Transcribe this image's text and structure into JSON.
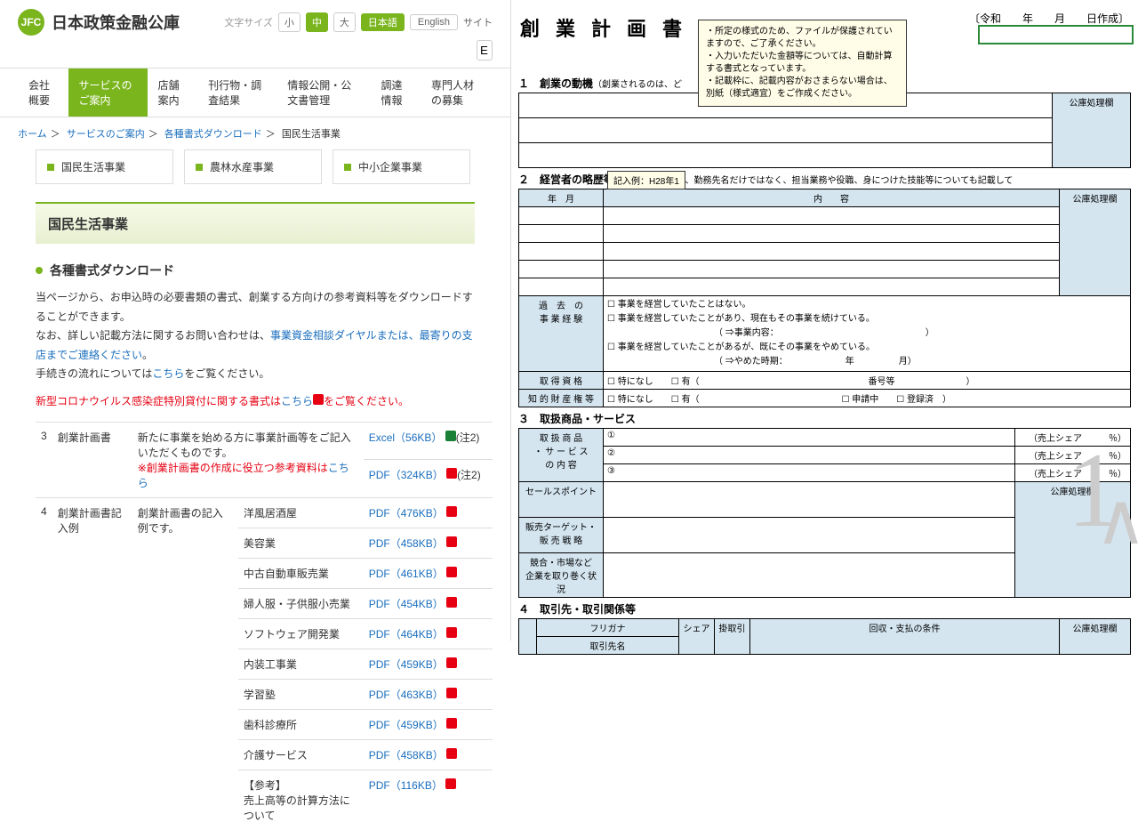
{
  "site": {
    "logo": "JFC",
    "name": "日本政策金融公庫",
    "sizeLabel": "文字サイズ",
    "sizes": [
      "小",
      "中",
      "大"
    ],
    "langs": [
      "日本語",
      "English"
    ],
    "siteLink": "サイト",
    "searchPlaceholder": "E"
  },
  "nav": [
    "会社概要",
    "サービスのご案内",
    "店舗案内",
    "刊行物・調査結果",
    "情報公開・公文書管理",
    "調達情報",
    "専門人材の募集"
  ],
  "breadcrumb": {
    "items": [
      "ホーム",
      "サービスのご案内",
      "各種書式ダウンロード"
    ],
    "current": "国民生活事業"
  },
  "cats": [
    "国民生活事業",
    "農林水産事業",
    "中小企業事業"
  ],
  "pageTitle": "国民生活事業",
  "sectionTitle": "各種書式ダウンロード",
  "intro1": "当ページから、お申込時の必要書類の書式、創業する方向けの参考資料等をダウンロードすることができます。",
  "intro2a": "なお、詳しい記載方法に関するお問い合わせは、",
  "intro2b": "事業資金相談ダイヤルまたは、最寄りの支店までご連絡ください",
  "intro2c": "。",
  "intro3a": "手続きの流れについては",
  "intro3b": "こちら",
  "intro3c": "をご覧ください。",
  "covid1": "新型コロナウイルス感染症特別貸付に関する書式は",
  "covid2": "こちら",
  "covid3": "をご覧ください。",
  "rows": {
    "r3": {
      "no": "3",
      "name": "創業計画書",
      "desc1": "新たに事業を始める方に事業計画等をご記入いただくものです。",
      "desc2": "※創業計画書の作成に役立つ参考資料は",
      "desc3": "こちら",
      "fmt1": "Excel（56KB）",
      "note1": "(注2)",
      "fmt2": "PDF（324KB）",
      "note2": "(注2)"
    },
    "r4": {
      "no": "4",
      "name": "創業計画書記入例",
      "desc": "創業計画書の記入例です。",
      "ex": [
        {
          "t": "洋風居酒屋",
          "f": "PDF（476KB）"
        },
        {
          "t": "美容業",
          "f": "PDF（458KB）"
        },
        {
          "t": "中古自動車販売業",
          "f": "PDF（461KB）"
        },
        {
          "t": "婦人服・子供服小売業",
          "f": "PDF（454KB）"
        },
        {
          "t": "ソフトウェア開発業",
          "f": "PDF（464KB）"
        },
        {
          "t": "内装工事業",
          "f": "PDF（459KB）"
        },
        {
          "t": "学習塾",
          "f": "PDF（463KB）"
        },
        {
          "t": "歯科診療所",
          "f": "PDF（459KB）"
        },
        {
          "t": "介護サービス",
          "f": "PDF（458KB）"
        },
        {
          "t": "【参考】\n売上高等の計算方法について",
          "f": "PDF（116KB）"
        }
      ]
    }
  },
  "form": {
    "title": "創業計画書",
    "date": "〔令和　　年　　月　　日作成〕",
    "tooltip": "・所定の様式のため、ファイルが保護されていますので、ご了承ください。\n・入力いただいた金額等については、自動計算する書式となっています。\n・記載枠に、記載内容がおさまらない場合は、別紙（様式適宜）をご作成ください。",
    "s1": {
      "h": "１　創業の動機",
      "sub": "（創業されるのは、ど",
      "proc": "公庫処理欄"
    },
    "s2": {
      "h": "２　経営者の略歴等",
      "sub": "（略歴については、勤務先名だけではなく、担当業務や役職、身につけた技能等についても記載して",
      "ym": "年　月",
      "content": "内　　容",
      "proc": "公庫処理欄",
      "callout": "記入例：H28年1",
      "past": "過　去　の\n事 業 経 験",
      "c1": "☐ 事業を経営していたことはない。",
      "c2": "☐ 事業を経営していたことがあり、現在もその事業を続けている。",
      "c2a": "（ ⇒事業内容：　　　　　　　　　　　　　　　　　）",
      "c3": "☐ 事業を経営していたことがあるが、既にその事業をやめている。",
      "c3a": "（ ⇒やめた時期：　　　　　　　年　　　　　月）",
      "qual": "取 得 資 格",
      "qualc": "☐ 特になし　　☐ 有（　　　　　　　　　　　　　　　　　　　番号等　　　　　　　　）",
      "ip": "知 的 財 産 権 等",
      "ipc": "☐ 特になし　　☐ 有（　　　　　　　　　　　　　　　　☐ 申請中　　☐ 登録済　）"
    },
    "s3": {
      "h": "３　取扱商品・サービス",
      "prod": "取 扱 商 品\n・ サ ー ビ ス\nの 内 容",
      "n1": "①",
      "n2": "②",
      "n3": "③",
      "share": "（売上シェア　　　％）",
      "proc": "公庫処理欄",
      "sp": "セールスポイント",
      "tgt": "販売ターゲット・\n販 売 戦 略",
      "comp": "競合・市場など\n企業を取り巻く状況"
    },
    "s4": {
      "h": "４　取引先・取引関係等",
      "furi": "フリガナ",
      "name": "取引先名",
      "share": "シェア",
      "kake": "掛取引",
      "cond": "回収・支払の条件",
      "proc": "公庫処理欄"
    }
  }
}
